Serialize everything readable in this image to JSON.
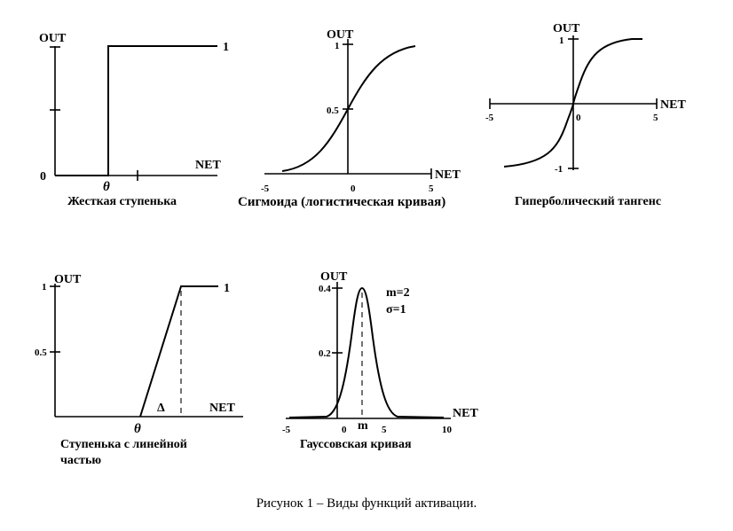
{
  "figure_caption": "Рисунок 1 – Виды функций активации.",
  "panels": {
    "step": {
      "caption": "Жесткая ступенька",
      "out_label": "OUT",
      "net_label": "NET",
      "theta": "θ",
      "zero": "0",
      "one": "1"
    },
    "sigmoid": {
      "caption": "Сигмоида (логистическая кривая)",
      "out_label": "OUT",
      "net_label": "NET",
      "y_ticks": [
        "1",
        "0.5"
      ],
      "x_ticks": [
        "-5",
        "0",
        "5"
      ]
    },
    "tanh": {
      "caption": "Гиперболический тангенс",
      "out_label": "OUT",
      "net_label": "NET",
      "y_ticks": [
        "1",
        "-1"
      ],
      "x_ticks": [
        "-5",
        "0",
        "5"
      ]
    },
    "linear": {
      "caption_line1": "Ступенька с линейной",
      "caption_line2": "частью",
      "out_label": "OUT",
      "net_label": "NET",
      "y_ticks": [
        "1",
        "0.5"
      ],
      "theta": "θ",
      "delta": "Δ",
      "one": "1"
    },
    "gauss": {
      "caption": "Гауссовская кривая",
      "out_label": "OUT",
      "net_label": "NET",
      "y_ticks": [
        "0.4",
        "0.2"
      ],
      "x_ticks": [
        "-5",
        "0",
        "5",
        "10"
      ],
      "m_label": "m",
      "param_m": "m=2",
      "param_sigma": "σ=1"
    }
  }
}
